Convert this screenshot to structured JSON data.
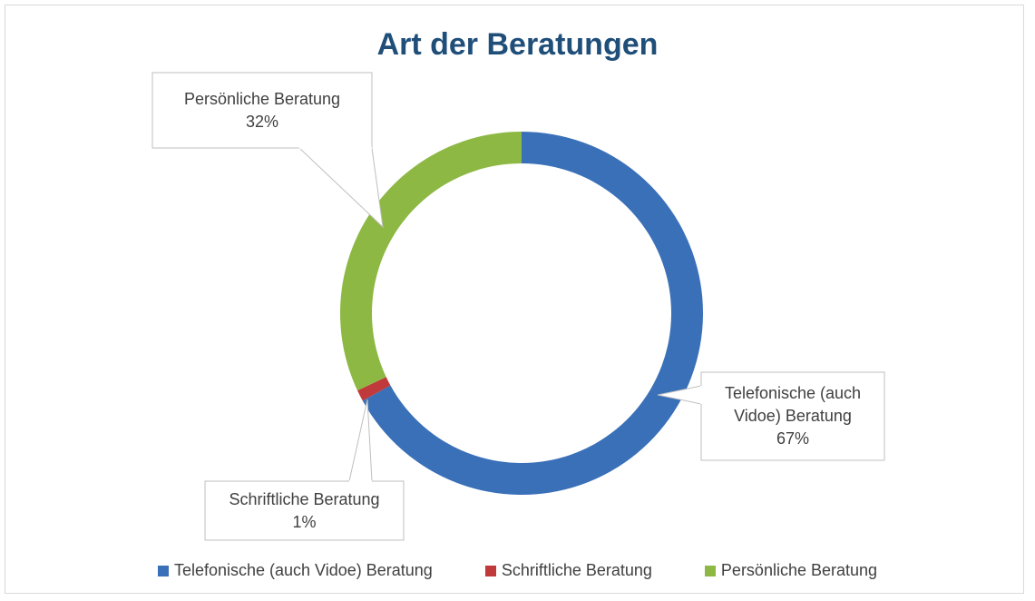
{
  "chart_data": {
    "type": "donut",
    "title": "Art der Beratungen",
    "categories": [
      "Telefonische (auch Vidoe) Beratung",
      "Schriftliche Beratung",
      "Persönliche Beratung"
    ],
    "values": [
      67,
      1,
      32
    ],
    "value_labels": [
      "67%",
      "1%",
      "32%"
    ],
    "colors": [
      "#3a70b8",
      "#c0393b",
      "#8db843"
    ],
    "legend": "bottom"
  }
}
